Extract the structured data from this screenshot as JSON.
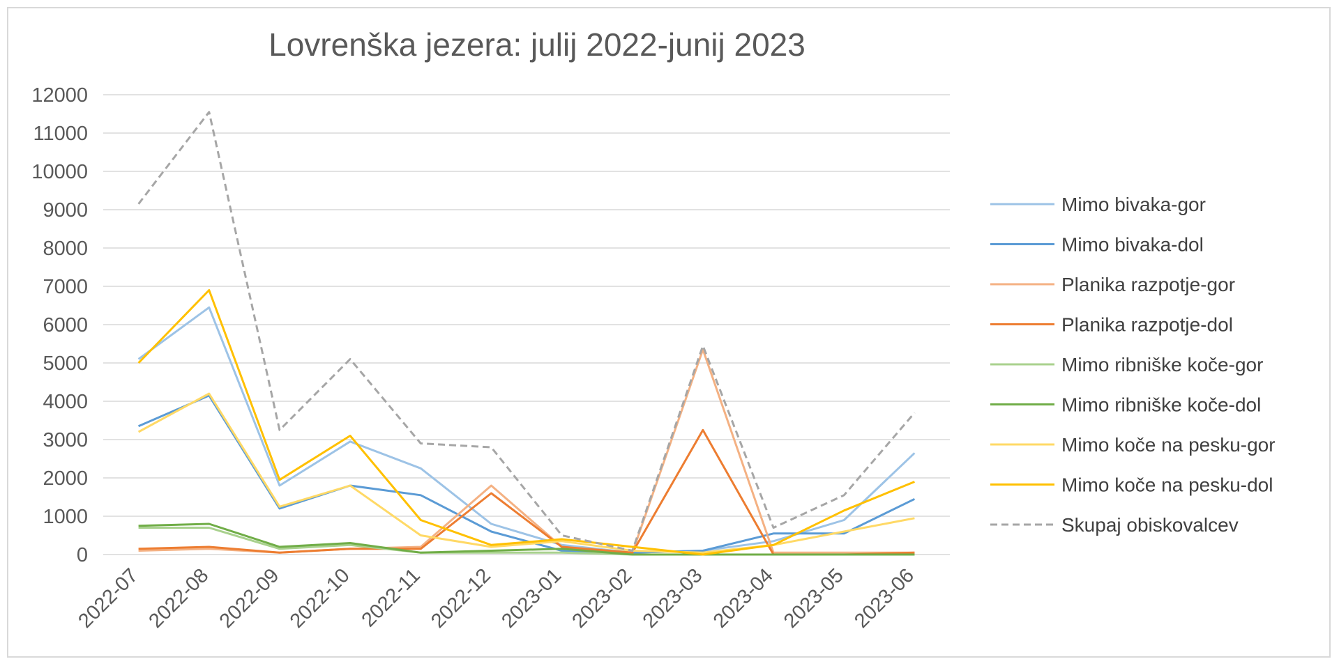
{
  "chart_data": {
    "type": "line",
    "title": "Lovrenška jezera: julij 2022-junij 2023",
    "xlabel": "",
    "ylabel": "",
    "ylim": [
      0,
      12000
    ],
    "yticks": [
      0,
      1000,
      2000,
      3000,
      4000,
      5000,
      6000,
      7000,
      8000,
      9000,
      10000,
      11000,
      12000
    ],
    "grid": true,
    "legend_position": "right",
    "categories": [
      "2022-07",
      "2022-08",
      "2022-09",
      "2022-10",
      "2022-11",
      "2022-12",
      "2023-01",
      "2023-02",
      "2023-03",
      "2023-04",
      "2023-05",
      "2023-06"
    ],
    "series": [
      {
        "name": "Mimo bivaka-gor",
        "color": "#9dc3e6",
        "dash": false,
        "values": [
          5100,
          6450,
          1800,
          2950,
          2250,
          800,
          250,
          50,
          100,
          350,
          900,
          2650
        ]
      },
      {
        "name": "Mimo bivaka-dol",
        "color": "#5b9bd5",
        "dash": false,
        "values": [
          3350,
          4150,
          1200,
          1800,
          1550,
          600,
          100,
          50,
          100,
          550,
          550,
          1450
        ]
      },
      {
        "name": "Planika razpotje-gor",
        "color": "#f4b183",
        "dash": false,
        "values": [
          100,
          150,
          50,
          150,
          200,
          1800,
          200,
          50,
          5350,
          50,
          50,
          50
        ]
      },
      {
        "name": "Planika razpotje-dol",
        "color": "#ed7d31",
        "dash": false,
        "values": [
          150,
          200,
          50,
          150,
          150,
          1600,
          200,
          50,
          3250,
          0,
          0,
          50
        ]
      },
      {
        "name": "Mimo ribniške koče-gor",
        "color": "#a9d18e",
        "dash": false,
        "values": [
          700,
          700,
          150,
          250,
          50,
          50,
          50,
          0,
          0,
          0,
          0,
          0
        ]
      },
      {
        "name": "Mimo ribniške koče-dol",
        "color": "#70ad47",
        "dash": false,
        "values": [
          750,
          800,
          200,
          300,
          50,
          100,
          150,
          0,
          0,
          0,
          0,
          0
        ]
      },
      {
        "name": "Mimo koče na pesku-gor",
        "color": "#ffd966",
        "dash": false,
        "values": [
          3200,
          4200,
          1250,
          1800,
          500,
          200,
          350,
          100,
          50,
          250,
          600,
          950
        ]
      },
      {
        "name": "Mimo koče na pesku-dol",
        "color": "#ffc000",
        "dash": false,
        "values": [
          5000,
          6900,
          1950,
          3100,
          900,
          250,
          400,
          200,
          0,
          250,
          1150,
          1900
        ]
      },
      {
        "name": "Skupaj obiskovalcev",
        "color": "#a6a6a6",
        "dash": true,
        "values": [
          9150,
          11550,
          3250,
          5100,
          2900,
          2800,
          500,
          100,
          5450,
          700,
          1550,
          3700
        ]
      }
    ]
  }
}
